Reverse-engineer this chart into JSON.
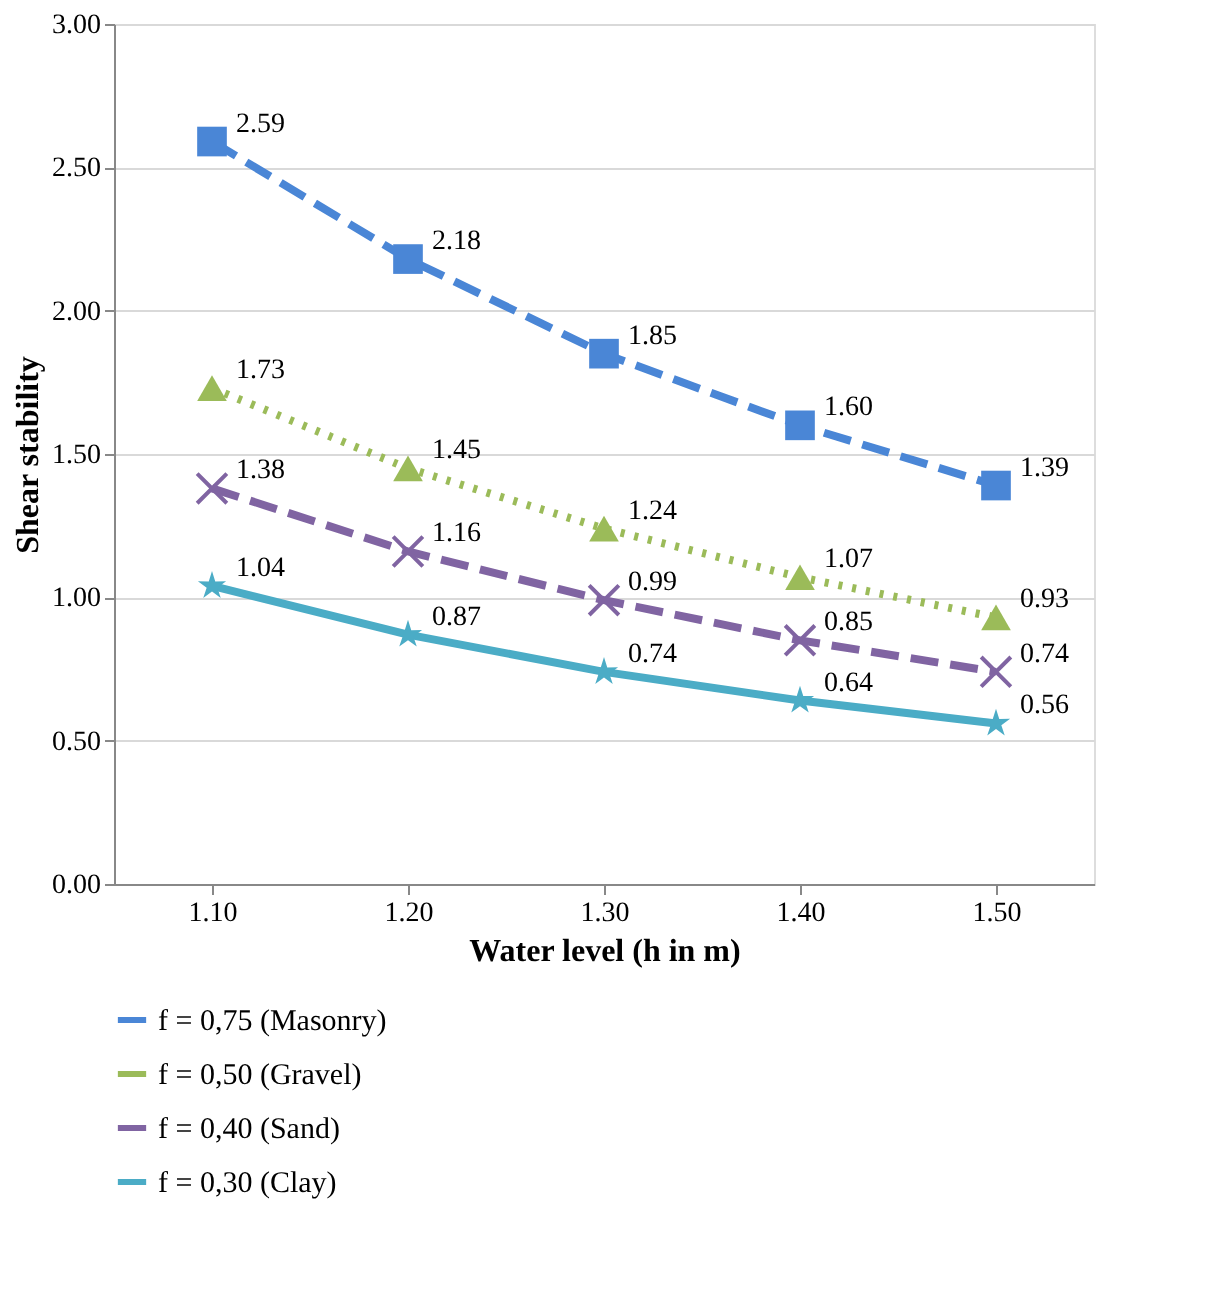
{
  "chart_data": {
    "type": "line",
    "xlabel": "Water level (h in m)",
    "ylabel": "Shear stability",
    "categories": [
      "1.10",
      "1.20",
      "1.30",
      "1.40",
      "1.50"
    ],
    "series": [
      {
        "name": "f = 0,75  (Masonry)",
        "color": "#4a86d6",
        "values": [
          2.59,
          2.18,
          1.85,
          1.6,
          1.39
        ],
        "value_labels": [
          "2.59",
          "2.18",
          "1.85",
          "1.60",
          "1.39"
        ],
        "marker": "square",
        "line_style": "dashed"
      },
      {
        "name": "f = 0,50  (Gravel)",
        "color": "#9bbb59",
        "values": [
          1.73,
          1.45,
          1.24,
          1.07,
          0.93
        ],
        "value_labels": [
          "1.73",
          "1.45",
          "1.24",
          "1.07",
          "0.93"
        ],
        "marker": "triangle",
        "line_style": "dotted"
      },
      {
        "name": "f = 0,40  (Sand)",
        "color": "#8064a2",
        "values": [
          1.38,
          1.16,
          0.99,
          0.85,
          0.74
        ],
        "value_labels": [
          "1.38",
          "1.16",
          "0.99",
          "0.85",
          "0.74"
        ],
        "marker": "cross",
        "line_style": "dashed"
      },
      {
        "name": "f = 0,30  (Clay)",
        "color": "#4bacc6",
        "values": [
          1.04,
          0.87,
          0.74,
          0.64,
          0.56
        ],
        "value_labels": [
          "1.04",
          "0.87",
          "0.74",
          "0.64",
          "0.56"
        ],
        "marker": "star",
        "line_style": "solid"
      }
    ],
    "ylim": [
      0,
      3
    ],
    "yticks": [
      {
        "value": 0,
        "label": "0.00"
      },
      {
        "value": 0.5,
        "label": "0.50"
      },
      {
        "value": 1,
        "label": "1.00"
      },
      {
        "value": 1.5,
        "label": "1.50"
      },
      {
        "value": 2,
        "label": "2.00"
      },
      {
        "value": 2.5,
        "label": "2.50"
      },
      {
        "value": 3,
        "label": "3.00"
      }
    ],
    "grid": "y",
    "legend": "bottom"
  }
}
